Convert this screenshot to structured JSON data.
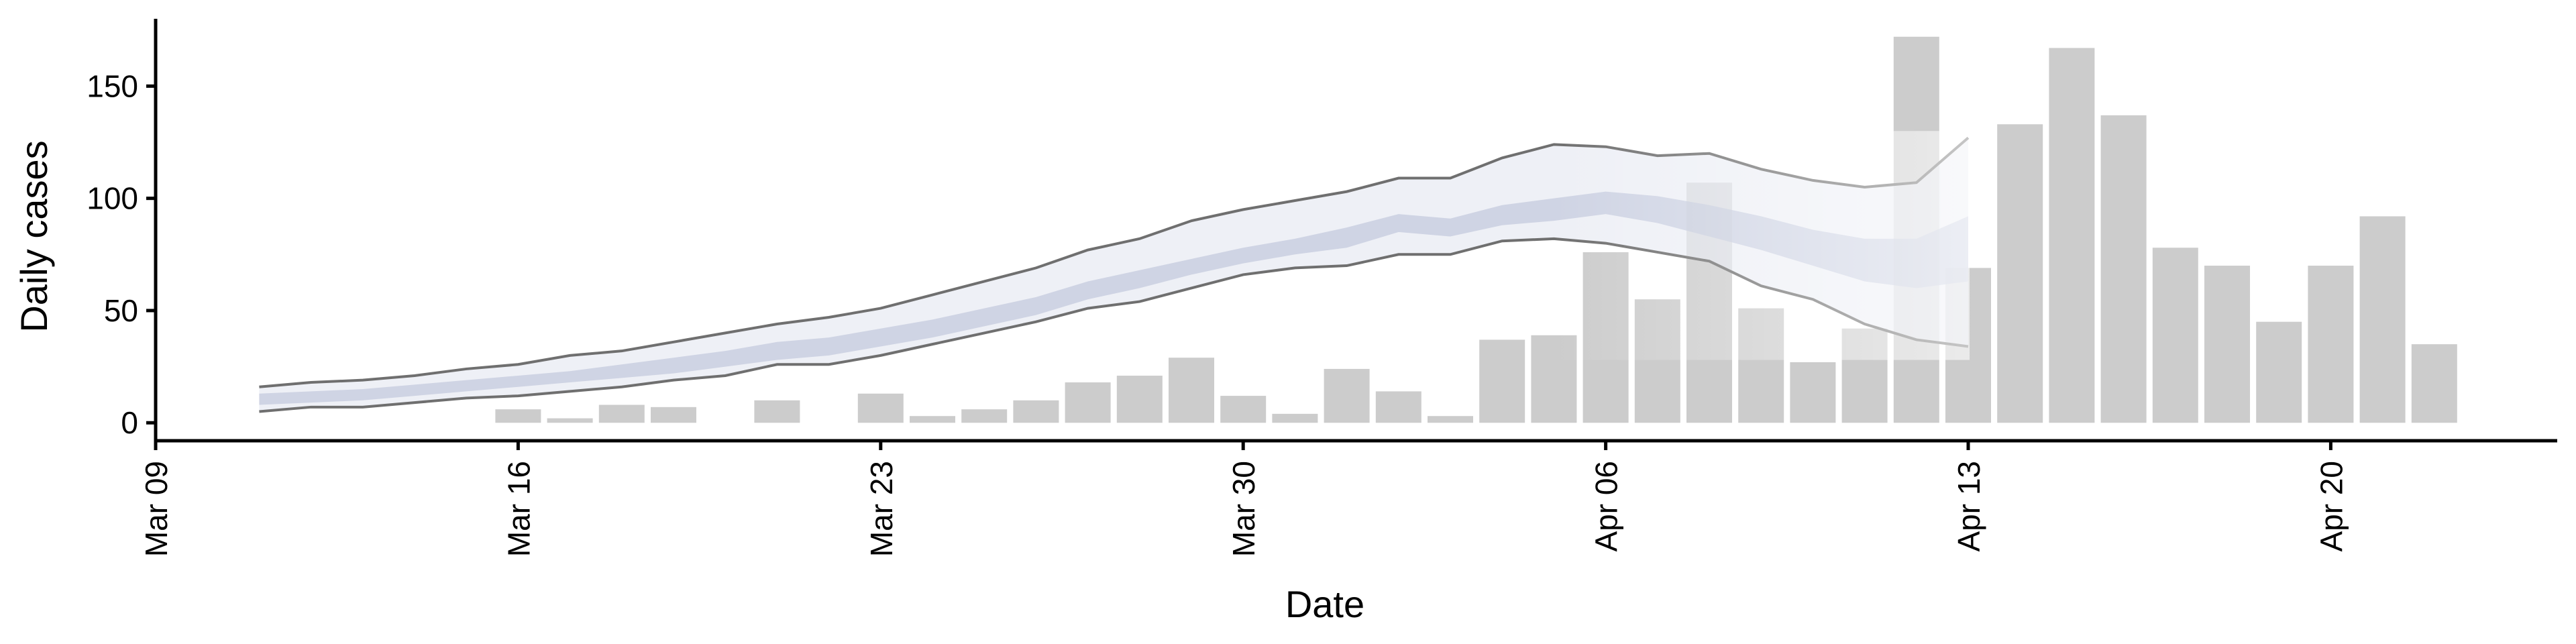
{
  "chart_data": {
    "type": "bar",
    "xlabel": "Date",
    "ylabel": "Daily cases",
    "ylim": [
      -8,
      180
    ],
    "xlim": [
      "2020-03-09",
      "2020-04-25"
    ],
    "year": 2020,
    "y_ticks": [
      0,
      50,
      100,
      150
    ],
    "x_ticks": [
      {
        "date": "2020-03-09",
        "label": "Mar 09"
      },
      {
        "date": "2020-03-16",
        "label": "Mar 16"
      },
      {
        "date": "2020-03-23",
        "label": "Mar 23"
      },
      {
        "date": "2020-03-30",
        "label": "Mar 30"
      },
      {
        "date": "2020-04-06",
        "label": "Apr 06"
      },
      {
        "date": "2020-04-13",
        "label": "Apr 13"
      },
      {
        "date": "2020-04-20",
        "label": "Apr 20"
      }
    ],
    "grid": false,
    "legend": "none",
    "bars": {
      "color": "#cccccc",
      "dates": [
        "2020-03-16",
        "2020-03-17",
        "2020-03-18",
        "2020-03-19",
        "2020-03-21",
        "2020-03-23",
        "2020-03-24",
        "2020-03-25",
        "2020-03-26",
        "2020-03-27",
        "2020-03-28",
        "2020-03-29",
        "2020-03-30",
        "2020-03-31",
        "2020-04-01",
        "2020-04-02",
        "2020-04-03",
        "2020-04-04",
        "2020-04-05",
        "2020-04-06",
        "2020-04-07",
        "2020-04-08",
        "2020-04-09",
        "2020-04-10",
        "2020-04-11",
        "2020-04-12",
        "2020-04-13",
        "2020-04-14",
        "2020-04-15",
        "2020-04-16",
        "2020-04-17",
        "2020-04-18",
        "2020-04-19",
        "2020-04-20",
        "2020-04-21",
        "2020-04-22"
      ],
      "values": [
        6,
        2,
        8,
        7,
        10,
        13,
        3,
        6,
        10,
        18,
        21,
        29,
        12,
        4,
        24,
        14,
        3,
        37,
        39,
        76,
        55,
        107,
        51,
        27,
        42,
        172,
        69,
        133,
        167,
        137,
        78,
        70,
        45,
        70,
        92,
        35
      ]
    },
    "estimate": {
      "dates": [
        "2020-03-11",
        "2020-03-12",
        "2020-03-13",
        "2020-03-14",
        "2020-03-15",
        "2020-03-16",
        "2020-03-17",
        "2020-03-18",
        "2020-03-19",
        "2020-03-20",
        "2020-03-21",
        "2020-03-22",
        "2020-03-23",
        "2020-03-24",
        "2020-03-25",
        "2020-03-26",
        "2020-03-27",
        "2020-03-28",
        "2020-03-29",
        "2020-03-30",
        "2020-03-31",
        "2020-04-01",
        "2020-04-02",
        "2020-04-03",
        "2020-04-04",
        "2020-04-05",
        "2020-04-06",
        "2020-04-07",
        "2020-04-08",
        "2020-04-09",
        "2020-04-10",
        "2020-04-11",
        "2020-04-12",
        "2020-04-13"
      ],
      "lower_90": [
        5,
        7,
        7,
        9,
        11,
        12,
        14,
        16,
        19,
        21,
        26,
        26,
        30,
        35,
        40,
        45,
        51,
        54,
        60,
        66,
        69,
        70,
        75,
        75,
        81,
        82,
        80,
        76,
        72,
        61,
        55,
        44,
        37,
        34
      ],
      "upper_90": [
        16,
        18,
        19,
        21,
        24,
        26,
        30,
        32,
        36,
        40,
        44,
        47,
        51,
        57,
        63,
        69,
        77,
        82,
        90,
        95,
        99,
        103,
        109,
        109,
        118,
        124,
        123,
        119,
        120,
        113,
        108,
        105,
        107,
        127
      ],
      "lower_50": [
        8,
        9,
        10,
        12,
        14,
        16,
        18,
        20,
        22,
        25,
        28,
        30,
        34,
        38,
        43,
        48,
        55,
        60,
        66,
        71,
        75,
        78,
        85,
        83,
        88,
        90,
        93,
        89,
        83,
        77,
        70,
        63,
        60,
        63
      ],
      "upper_50": [
        13,
        14,
        15,
        17,
        19,
        21,
        23,
        26,
        29,
        32,
        36,
        38,
        42,
        46,
        51,
        56,
        63,
        68,
        73,
        78,
        82,
        87,
        93,
        91,
        97,
        100,
        103,
        101,
        97,
        92,
        86,
        82,
        82,
        92
      ],
      "band_90_color": "#e4e6f0",
      "band_50_color": "#c4c9dc",
      "outline_color": "#6f6f6f"
    }
  }
}
